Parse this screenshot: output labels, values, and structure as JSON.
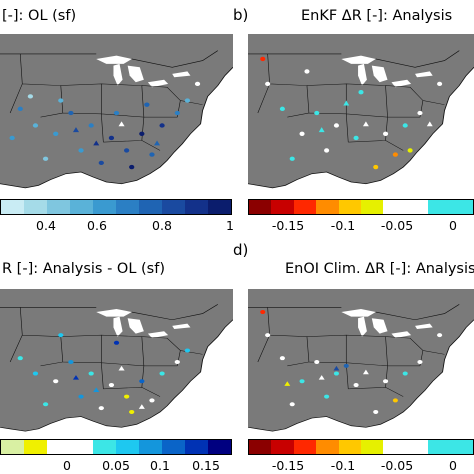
{
  "panels": {
    "a": {
      "title": "[-]: OL (sf)",
      "ticks": [
        "0.4",
        "0.6",
        "0.8",
        "1"
      ],
      "colors": [
        "#c9ecf4",
        "#a5dbe8",
        "#7fc6df",
        "#5ab2d8",
        "#3a9ad0",
        "#2b7fc4",
        "#1f64b3",
        "#1a4aa0",
        "#13318a",
        "#0b1d6d"
      ]
    },
    "b": {
      "letter": "b)",
      "title": "EnKF ΔR [-]: Analysis",
      "ticks": [
        "-0.15",
        "-0.1",
        "-0.05",
        "0"
      ],
      "colors": [
        "#8b0000",
        "#c80000",
        "#ff2800",
        "#ff8c00",
        "#ffc800",
        "#e6f000",
        "#ffffff",
        "#ffffff",
        "#3ce6e6",
        "#3ce6e6"
      ]
    },
    "c": {
      "title": "R [-]: Analysis - OL (sf)",
      "ticks": [
        "0",
        "0.05",
        "0.1",
        "0.15"
      ],
      "colors": [
        "#d9f0a3",
        "#f0f000",
        "#ffffff",
        "#ffffff",
        "#3ce6e6",
        "#1ec8f0",
        "#1496dc",
        "#0a64c8",
        "#0032b4",
        "#000080"
      ]
    },
    "d": {
      "letter": "d)",
      "title": "EnOI Clim. ΔR [-]: Analysis",
      "ticks": [
        "-0.15",
        "-0.1",
        "-0.05",
        "0"
      ],
      "colors": [
        "#8b0000",
        "#c80000",
        "#ff2800",
        "#ff8c00",
        "#ffc800",
        "#e6f000",
        "#ffffff",
        "#ffffff",
        "#3ce6e6",
        "#3ce6e6"
      ]
    }
  },
  "map_colors": {
    "land": "#7a7a7a",
    "ocean": "#ffffff",
    "lakes": "#ffffff",
    "borders": "#111111"
  }
}
